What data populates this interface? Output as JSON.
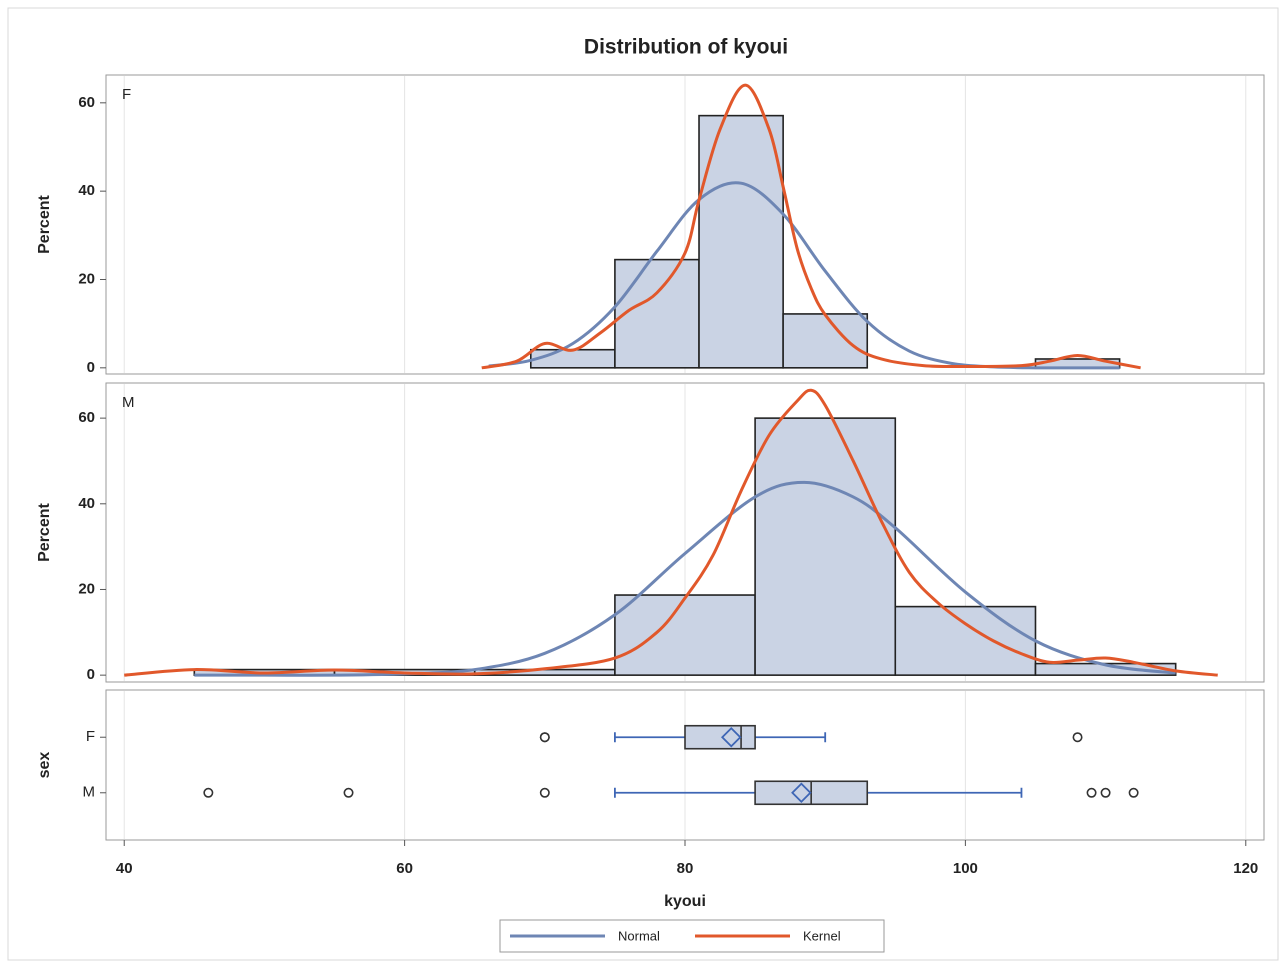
{
  "chart_data": [
    {
      "type": "histogram",
      "title": "Distribution of kyoui",
      "panel_label": "F",
      "y_label": "Percent",
      "bins": [
        69,
        75,
        81,
        87,
        93,
        99,
        105,
        111
      ],
      "values": [
        4.1,
        24.5,
        57.1,
        12.2,
        0,
        0,
        2.0
      ],
      "color": "#cad3e4",
      "xlim": [
        38.7,
        121.3
      ],
      "xticks": [
        40,
        60,
        80,
        100,
        120
      ],
      "ylim": [
        -1.4,
        66.3
      ],
      "yticks": [
        0,
        20,
        40,
        60
      ],
      "grid": true,
      "legend": "bottom",
      "series": [
        {
          "name": "Normal",
          "color": "#6e86b4",
          "x": [
            66,
            69,
            72,
            75,
            78,
            81,
            84,
            87,
            90,
            93,
            96,
            99,
            102,
            105,
            108,
            111
          ],
          "values": [
            0.4,
            1.7,
            5.5,
            13.8,
            26.4,
            38.1,
            41.8,
            34.8,
            21.9,
            10.5,
            3.8,
            1.0,
            0.2,
            0,
            0,
            0
          ]
        },
        {
          "name": "Kernel",
          "color": "#e1582b",
          "x": [
            65.5,
            68,
            70,
            72,
            74,
            76,
            78,
            80,
            81,
            82.5,
            84.3,
            86,
            87,
            88,
            89,
            90,
            92,
            94,
            97,
            100,
            104,
            106,
            108,
            110,
            112.5
          ],
          "values": [
            0,
            1.5,
            5.5,
            4,
            8,
            13,
            17,
            26,
            38,
            54,
            64,
            54,
            41,
            27,
            18,
            12,
            5,
            2,
            0.5,
            0.3,
            0.5,
            1.5,
            2.8,
            1.5,
            0
          ]
        }
      ]
    },
    {
      "type": "histogram",
      "panel_label": "M",
      "y_label": "Percent",
      "bins": [
        45,
        55,
        65,
        75,
        85,
        95,
        105,
        115
      ],
      "values": [
        1.3,
        1.3,
        1.3,
        18.7,
        60,
        16,
        2.7
      ],
      "color": "#cad3e4",
      "xlim": [
        38.7,
        121.3
      ],
      "xticks": [
        40,
        60,
        80,
        100,
        120
      ],
      "ylim": [
        -1.6,
        68.2
      ],
      "yticks": [
        0,
        20,
        40,
        60
      ],
      "grid": true,
      "series": [
        {
          "name": "Normal",
          "color": "#6e86b4",
          "x": [
            45,
            50,
            55,
            60,
            65,
            70,
            75,
            80,
            85,
            88.5,
            92,
            95,
            100,
            105,
            110,
            115
          ],
          "values": [
            0,
            0,
            0,
            0.3,
            1.3,
            5.1,
            14.1,
            28.4,
            41.6,
            45,
            41.6,
            34.4,
            19.4,
            8.0,
            2.4,
            0.5
          ]
        },
        {
          "name": "Kernel",
          "color": "#e1582b",
          "x": [
            40,
            45,
            50,
            55,
            60,
            65,
            70,
            75,
            78,
            80,
            82,
            84,
            86,
            88,
            89,
            90,
            92,
            94,
            96,
            98,
            100,
            102,
            104,
            106,
            108,
            110,
            112,
            115,
            118
          ],
          "values": [
            0,
            1.3,
            0.5,
            1.2,
            0.5,
            0.3,
            1.5,
            4,
            10,
            18,
            28,
            43,
            56,
            64,
            66.5,
            63,
            50,
            36,
            24,
            17,
            12,
            8,
            5,
            3,
            3.5,
            4,
            3,
            1,
            0
          ]
        }
      ]
    },
    {
      "type": "box",
      "y_label": "sex",
      "x_label": "kyoui",
      "categories": [
        "F",
        "M"
      ],
      "color": "#cad3e4",
      "whisker_color": "#3e66b5",
      "xlim": [
        38.7,
        121.3
      ],
      "xticks": [
        40,
        60,
        80,
        100,
        120
      ],
      "grid": true,
      "boxes": [
        {
          "whisker_low": 75,
          "q1": 80,
          "median": 84,
          "q3": 85,
          "whisker_high": 90,
          "mean": 83.3,
          "outliers": [
            70,
            70,
            108
          ]
        },
        {
          "whisker_low": 75,
          "q1": 85,
          "median": 89,
          "q3": 93,
          "whisker_high": 104,
          "mean": 88.3,
          "outliers": [
            46,
            56,
            70,
            109,
            110,
            112
          ]
        }
      ]
    }
  ]
}
